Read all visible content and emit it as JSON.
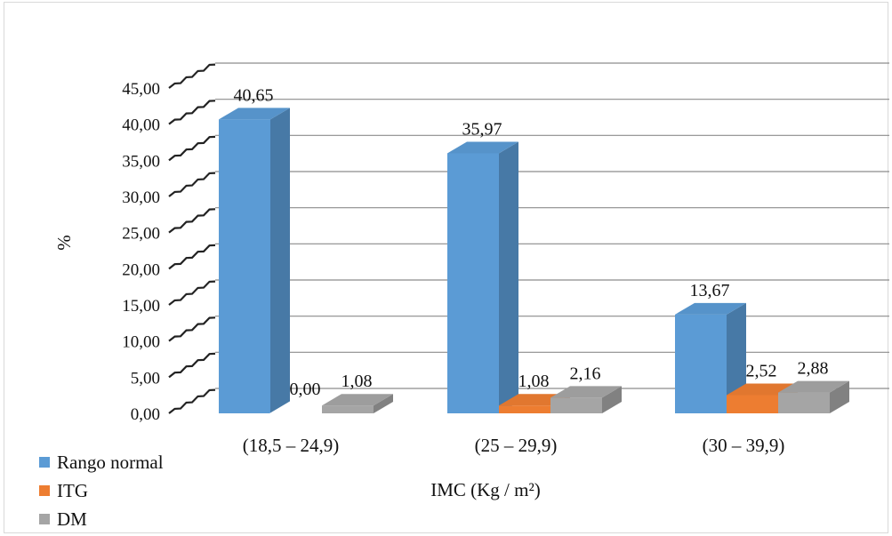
{
  "chart_data": {
    "type": "bar",
    "three_d": true,
    "categories": [
      "(18,5 – 24,9)",
      "(25 – 29,9)",
      "(30 – 39,9)"
    ],
    "series": [
      {
        "name": "Rango normal",
        "values": [
          40.65,
          35.97,
          13.67
        ],
        "labels": [
          "40,65",
          "35,97",
          "13,67"
        ],
        "color": "#5b9bd5"
      },
      {
        "name": "ITG",
        "values": [
          0.0,
          1.08,
          2.52
        ],
        "labels": [
          "0,00",
          "1,08",
          "2,52"
        ],
        "color": "#ed7d31"
      },
      {
        "name": "DM",
        "values": [
          1.08,
          2.16,
          2.88
        ],
        "labels": [
          "1,08",
          "2,16",
          "2,88"
        ],
        "color": "#a5a5a5"
      }
    ],
    "yticks": [
      "0,00",
      "5,00",
      "10,00",
      "15,00",
      "20,00",
      "25,00",
      "30,00",
      "35,00",
      "40,00",
      "45,00"
    ],
    "ylim": [
      0,
      45
    ],
    "ylabel": "%",
    "xlabel": "IMC (Kg / m²)",
    "grid": true,
    "legend_position": "bottom-left"
  }
}
